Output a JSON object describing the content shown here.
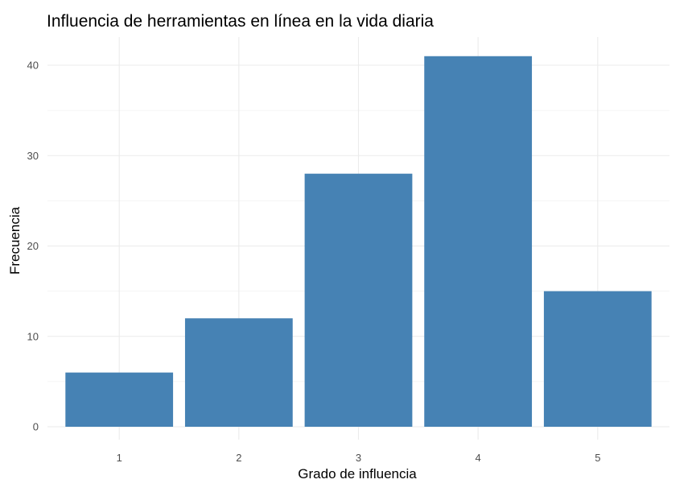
{
  "chart_data": {
    "type": "bar",
    "title": "Influencia de herramientas en línea en la vida diaria",
    "xlabel": "Grado de influencia",
    "ylabel": "Frecuencia",
    "categories": [
      "1",
      "2",
      "3",
      "4",
      "5"
    ],
    "values": [
      6,
      12,
      28,
      41,
      15
    ],
    "ylim": [
      0,
      42
    ],
    "yticks": [
      0,
      10,
      20,
      30,
      40
    ],
    "ytick_labels": [
      "0",
      "10",
      "20",
      "30",
      "40"
    ],
    "grid": true,
    "legend": "none",
    "colors": {
      "bar": "#4682B4",
      "grid": "#EBEBEB",
      "background": "#FFFFFF"
    }
  }
}
